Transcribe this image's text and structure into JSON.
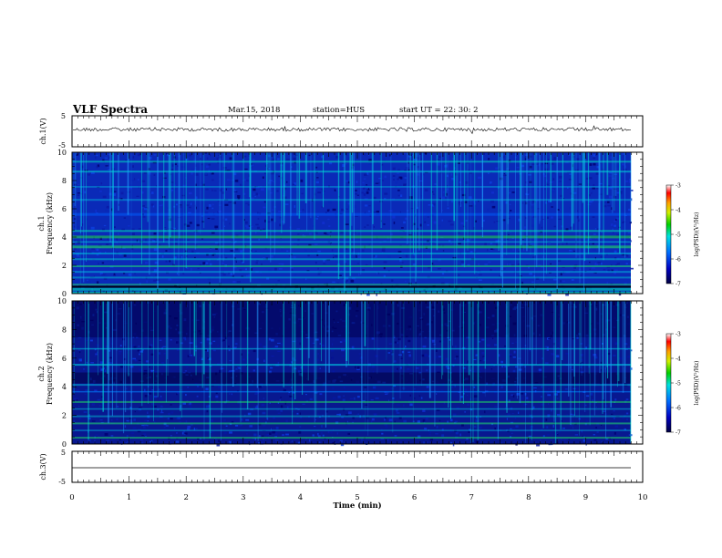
{
  "header": {
    "title": "VLF Spectra",
    "date": "Mar.15, 2018",
    "station": "station=HUS",
    "start": "start  UT =   22: 30: 2"
  },
  "chart_data": [
    {
      "type": "line",
      "panel": "ch1-waveform",
      "ylabel": "ch.1(V)",
      "ylim": [
        -5,
        5
      ],
      "yticks": [
        "5",
        "-5"
      ],
      "trace": "noisy signal near 0 V"
    },
    {
      "type": "heatmap",
      "panel": "ch1-spectrogram",
      "ylabel": "Frequency (kHz)",
      "chlabel": "ch.1",
      "ylim": [
        0,
        10
      ],
      "yticks": [
        "0",
        "2",
        "4",
        "6",
        "8",
        "10"
      ],
      "colorbar": {
        "label": "log(PSD)(V²/Hz)",
        "range": [
          -7,
          -3
        ],
        "ticks": [
          "-3",
          "-4",
          "-5",
          "-6",
          "-7"
        ]
      }
    },
    {
      "type": "heatmap",
      "panel": "ch2-spectrogram",
      "ylabel": "Frequency (kHz)",
      "chlabel": "ch.2",
      "ylim": [
        0,
        10
      ],
      "yticks": [
        "0",
        "2",
        "4",
        "6",
        "8",
        "10"
      ],
      "colorbar": {
        "label": "log(PSD)(V²/Hz)",
        "range": [
          -7,
          -3
        ],
        "ticks": [
          "-3",
          "-4",
          "-5",
          "-6",
          "-7"
        ]
      }
    },
    {
      "type": "line",
      "panel": "ch3-waveform",
      "ylabel": "ch.3(V)",
      "ylim": [
        -5,
        5
      ],
      "yticks": [
        "5",
        "-5"
      ],
      "trace": "flat line at ~0 V"
    }
  ],
  "xaxis": {
    "label": "Time (min)",
    "range": [
      0,
      10
    ],
    "ticks": [
      "0",
      "1",
      "2",
      "3",
      "4",
      "5",
      "6",
      "7",
      "8",
      "9",
      "10"
    ]
  }
}
